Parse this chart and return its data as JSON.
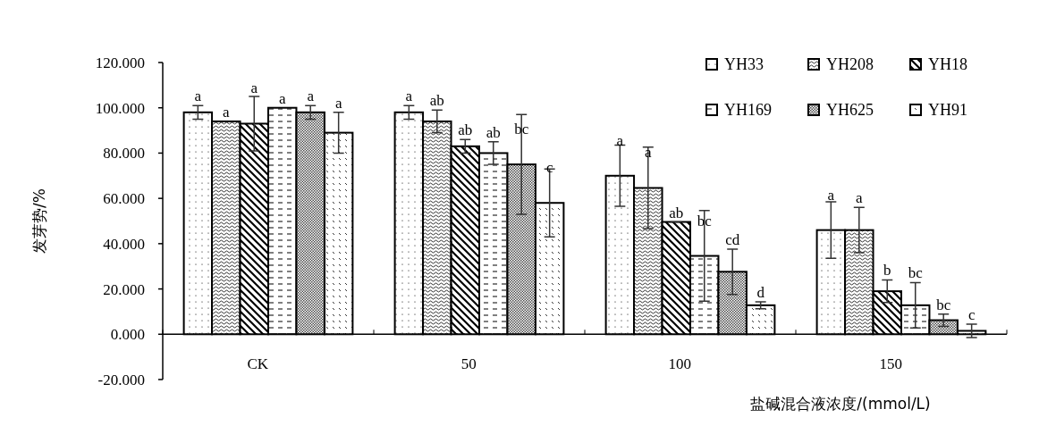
{
  "chart_data": {
    "type": "bar",
    "xlabel": "盐碱混合液浓度/(mmol/L)",
    "ylabel": "发芽势/%",
    "categories": [
      "CK",
      "50",
      "100",
      "150"
    ],
    "ylim": [
      -20,
      120
    ],
    "yticks": [
      {
        "value": -20,
        "label": "-20.000"
      },
      {
        "value": 0,
        "label": "0.000"
      },
      {
        "value": 20,
        "label": "20.000"
      },
      {
        "value": 40,
        "label": "40.000"
      },
      {
        "value": 60,
        "label": "60.000"
      },
      {
        "value": 80,
        "label": "80.000"
      },
      {
        "value": 100,
        "label": "100.000"
      },
      {
        "value": 120,
        "label": "120.000"
      }
    ],
    "grid": false,
    "legend": "top right",
    "series": [
      {
        "name": "YH33",
        "color": "#000000",
        "values": [
          98,
          98,
          70,
          46
        ],
        "errors": [
          3,
          3,
          13.5,
          12.5
        ],
        "value_labels": [
          "a",
          "a",
          "a",
          "a"
        ]
      },
      {
        "name": "YH208",
        "color": "#000000",
        "values": [
          94,
          94,
          64.6,
          46
        ],
        "errors": [
          null,
          5,
          18,
          10
        ],
        "value_labels": [
          "a",
          "ab",
          "a",
          "a"
        ]
      },
      {
        "name": "YH18",
        "color": "#000000",
        "values": [
          93,
          83,
          49.6,
          19
        ],
        "errors": [
          12,
          3,
          0,
          5
        ],
        "value_labels": [
          "a",
          "ab",
          "ab",
          "b"
        ]
      },
      {
        "name": "YH169",
        "color": "#000000",
        "values": [
          100,
          80,
          34.6,
          12.8
        ],
        "errors": [
          null,
          5,
          20,
          10
        ],
        "value_labels": [
          "a",
          "ab",
          "bc",
          "bc"
        ]
      },
      {
        "name": "YH625",
        "color": "#000000",
        "values": [
          98,
          75,
          27.6,
          6.2
        ],
        "errors": [
          3,
          22,
          10,
          2.7
        ],
        "value_labels": [
          "a",
          "bc",
          "cd",
          "bc"
        ]
      },
      {
        "name": "YH91",
        "color": "#000000",
        "values": [
          89,
          58,
          12.8,
          1.5
        ],
        "errors": [
          9,
          15,
          1.5,
          3
        ],
        "value_labels": [
          "a",
          "c",
          "d",
          "c"
        ]
      }
    ]
  }
}
